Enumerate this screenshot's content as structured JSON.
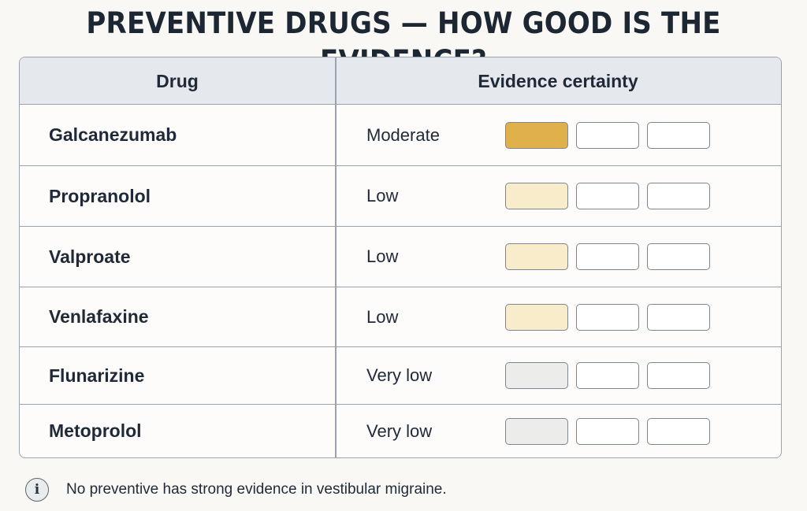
{
  "title": "PREVENTIVE DRUGS — HOW GOOD IS THE EVIDENCE?",
  "table": {
    "headers": {
      "drug": "Drug",
      "evidence": "Evidence certainty"
    },
    "rows": [
      {
        "drug": "Galcanezumab",
        "certainty": "Moderate",
        "filled_boxes": 1,
        "fill_color": "#e0b04a"
      },
      {
        "drug": "Propranolol",
        "certainty": "Low",
        "filled_boxes": 1,
        "fill_color": "#f8eccb"
      },
      {
        "drug": "Valproate",
        "certainty": "Low",
        "filled_boxes": 1,
        "fill_color": "#f8eccb"
      },
      {
        "drug": "Venlafaxine",
        "certainty": "Low",
        "filled_boxes": 1,
        "fill_color": "#f8eccb"
      },
      {
        "drug": "Flunarizine",
        "certainty": "Very low",
        "filled_boxes": 1,
        "fill_color": "#ececea"
      },
      {
        "drug": "Metoprolol",
        "certainty": "Very low",
        "filled_boxes": 1,
        "fill_color": "#ececea"
      }
    ],
    "total_boxes": 3
  },
  "footnote": {
    "icon": "info-icon",
    "icon_glyph": "i",
    "text": "No preventive has strong evidence in vestibular migraine."
  }
}
